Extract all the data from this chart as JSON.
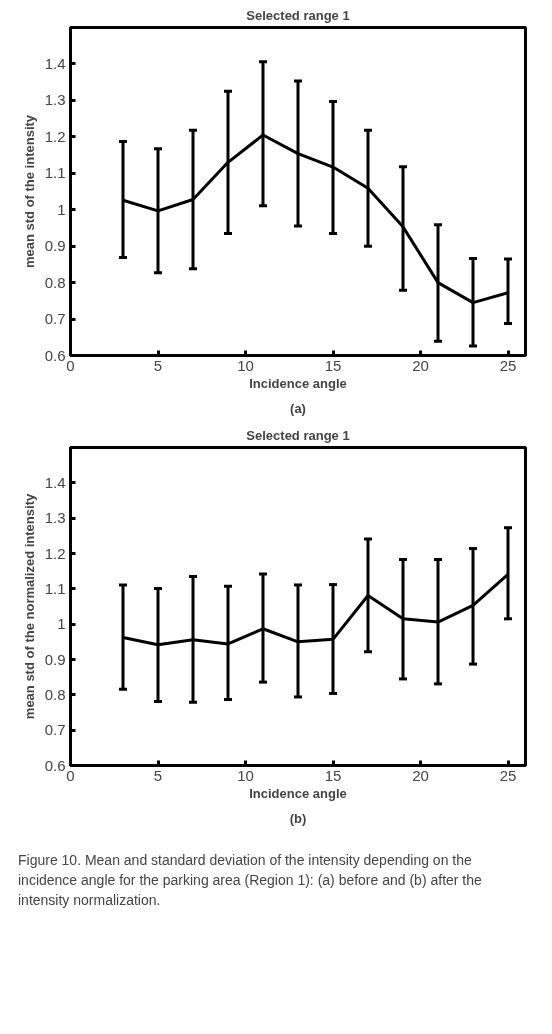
{
  "chart_data": [
    {
      "type": "line",
      "title": "Selected range 1",
      "xlabel": "Incidence angle",
      "ylabel": "mean std of the intensity",
      "annotations": [
        "(a)"
      ],
      "x": [
        3,
        5,
        7,
        9,
        11,
        13,
        15,
        17,
        19,
        21,
        23,
        25
      ],
      "series": [
        {
          "color": "#000000",
          "values": [
            1.026,
            0.997,
            1.028,
            1.13,
            1.205,
            1.154,
            1.117,
            1.059,
            0.953,
            0.8,
            0.745,
            0.772
          ],
          "errors": [
            [
              0.869,
              1.187
            ],
            [
              0.827,
              1.167
            ],
            [
              0.838,
              1.218
            ],
            [
              0.935,
              1.325
            ],
            [
              1.011,
              1.406
            ],
            [
              0.955,
              1.353
            ],
            [
              0.935,
              1.297
            ],
            [
              0.9,
              1.218
            ],
            [
              0.779,
              1.118
            ],
            [
              0.639,
              0.959
            ],
            [
              0.626,
              0.866
            ],
            [
              0.688,
              0.865
            ]
          ]
        }
      ],
      "xlim": [
        0,
        26
      ],
      "xticks": [
        0,
        5,
        10,
        15,
        20,
        25
      ],
      "ylim": [
        0.6,
        1.5
      ],
      "yticks": [
        0.6,
        {
          "value": 0.7,
          "label": "0.7"
        },
        {
          "value": 0.8,
          "label": "0.8"
        },
        {
          "value": 0.9,
          "label": "0.9"
        },
        1,
        1.1,
        1.2,
        1.3,
        1.4
      ],
      "grid": false,
      "marker": "none",
      "line_style": "solid"
    },
    {
      "type": "line",
      "title": "Selected range 1",
      "xlabel": "Incidence angle",
      "ylabel": "mean std of the normalized intensity",
      "annotations": [
        "(b)",
        "Figure 10. Mean and standard deviation of the intensity depending on the incidence angle for the parking area (Region 1): (a) before and (b) after the intensity normalization."
      ],
      "x": [
        3,
        5,
        7,
        9,
        11,
        13,
        15,
        17,
        19,
        21,
        23,
        25
      ],
      "series": [
        {
          "color": "#000000",
          "values": [
            0.962,
            0.942,
            0.956,
            0.944,
            0.987,
            0.95,
            0.957,
            1.081,
            1.015,
            1.006,
            1.053,
            1.141
          ],
          "errors": [
            [
              0.816,
              1.111
            ],
            [
              0.781,
              1.101
            ],
            [
              0.779,
              1.135
            ],
            [
              0.787,
              1.107
            ],
            [
              0.836,
              1.142
            ],
            [
              0.794,
              1.111
            ],
            [
              0.804,
              1.112
            ],
            [
              0.922,
              1.241
            ],
            [
              0.845,
              1.183
            ],
            [
              0.831,
              1.183
            ],
            [
              0.887,
              1.214
            ],
            [
              1.015,
              1.273
            ]
          ]
        }
      ],
      "xlim": [
        0,
        26
      ],
      "xticks": [
        0,
        5,
        10,
        15,
        20,
        25
      ],
      "ylim": [
        0.6,
        1.5
      ],
      "yticks": [
        0.6,
        {
          "value": 0.7,
          "label": "0.7"
        },
        {
          "value": 0.8,
          "label": "0.8"
        },
        {
          "value": 0.9,
          "label": "0.9"
        },
        1,
        1.1,
        1.2,
        1.3,
        1.4
      ],
      "grid": false,
      "marker": "none",
      "line_style": "solid"
    }
  ]
}
